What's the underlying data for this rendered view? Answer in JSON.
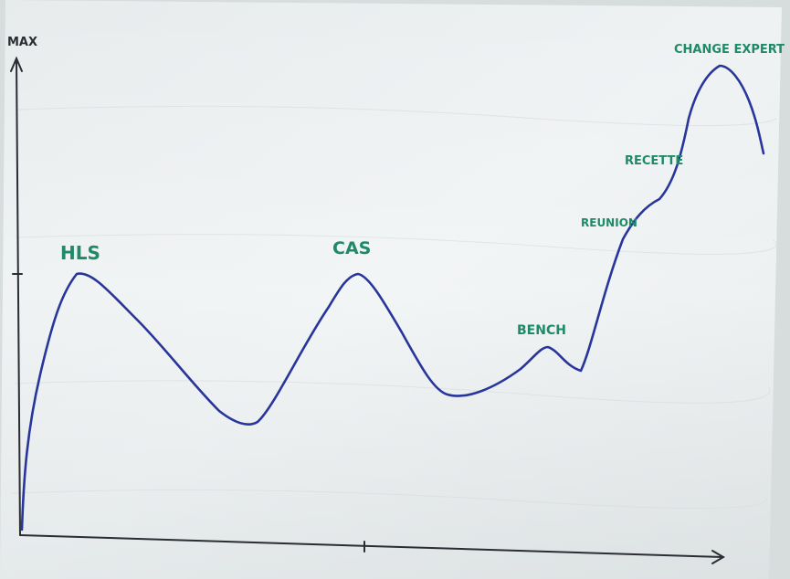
{
  "photo": {
    "subject": "",
    "y_axis_label": "MAX",
    "colors": {
      "paper": "#eef2f3",
      "curve": "#28359a",
      "labels": "#1f8a66",
      "axes": "#2a2d33"
    }
  },
  "annotations": [
    {
      "id": "hls",
      "text": "HLS"
    },
    {
      "id": "cas",
      "text": "CAS"
    },
    {
      "id": "bench",
      "text": "BENCH"
    },
    {
      "id": "reunion",
      "text": "REUNION"
    },
    {
      "id": "recette",
      "text": "RECETTE"
    },
    {
      "id": "change-expert",
      "text": "CHANGE EXPERT"
    }
  ]
}
